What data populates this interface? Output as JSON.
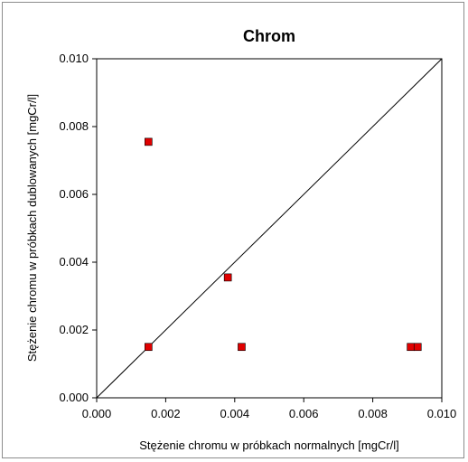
{
  "chart_data": {
    "type": "scatter",
    "title": "Chrom",
    "xlabel": "Stężenie chromu w próbkach normalnych [mgCr/l]",
    "ylabel": "Stężenie chromu w próbkach dublowanych [mgCr/l]",
    "xlim": [
      0,
      0.01
    ],
    "ylim": [
      0,
      0.01
    ],
    "xticks": [
      "0.000",
      "0.002",
      "0.004",
      "0.006",
      "0.008",
      "0.010"
    ],
    "yticks": [
      "0.000",
      "0.002",
      "0.004",
      "0.006",
      "0.008",
      "0.010"
    ],
    "grid": false,
    "legend": false,
    "reference_line": "y = x",
    "marker_color": "#e00000",
    "line_color": "#000000",
    "points": [
      {
        "x": 0.0015,
        "y": 0.00755
      },
      {
        "x": 0.0015,
        "y": 0.0015
      },
      {
        "x": 0.0038,
        "y": 0.00355
      },
      {
        "x": 0.0042,
        "y": 0.0015
      },
      {
        "x": 0.0091,
        "y": 0.0015
      },
      {
        "x": 0.0093,
        "y": 0.0015
      }
    ]
  }
}
